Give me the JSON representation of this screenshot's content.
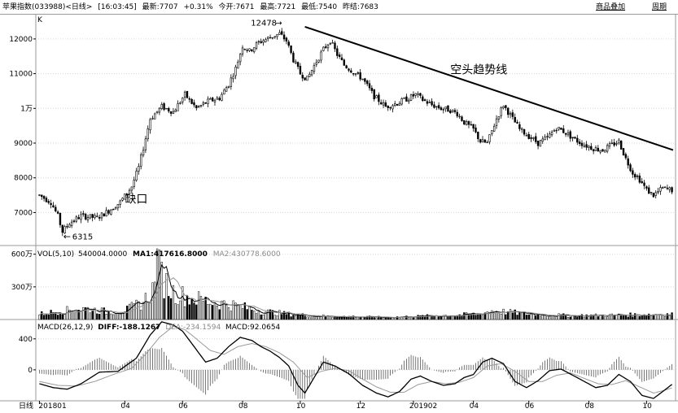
{
  "header": {
    "title": "苹果指数(033988)<日线>",
    "time": "[16:03:45]",
    "latest": "最新:7707",
    "change": "+0.31%",
    "open": "今开:7671",
    "high": "最高:7721",
    "low": "最低:7540",
    "prev_close": "昨结:7683",
    "overlay_label": "商品叠加",
    "period_label": "周期"
  },
  "colors": {
    "grid": "#d6d6d6",
    "line": "#000000",
    "ma2": "#9a9a9a",
    "border": "#9a9a9a"
  },
  "chart_data": [
    {
      "type": "candlestick",
      "panel": "price",
      "corner_label": "K",
      "y_ticks": [
        {
          "v": 12000,
          "label": "12000"
        },
        {
          "v": 11000,
          "label": "11000"
        },
        {
          "v": 10000,
          "label": "1万"
        },
        {
          "v": 9000,
          "label": "9000"
        },
        {
          "v": 8000,
          "label": "8000"
        },
        {
          "v": 7000,
          "label": "7000"
        }
      ],
      "ylim": [
        6050,
        12700
      ],
      "x_ticks": [
        "201801",
        "04",
        "06",
        "08",
        "10",
        "12",
        "201902",
        "04",
        "06",
        "08",
        "10"
      ],
      "close_profile": [
        [
          0,
          7500
        ],
        [
          5,
          7300
        ],
        [
          8,
          6900
        ],
        [
          10,
          6450
        ],
        [
          13,
          6700
        ],
        [
          18,
          6900
        ],
        [
          25,
          6850
        ],
        [
          30,
          7050
        ],
        [
          35,
          7300
        ],
        [
          40,
          7750
        ],
        [
          43,
          8300
        ],
        [
          48,
          9700
        ],
        [
          53,
          10050
        ],
        [
          58,
          9900
        ],
        [
          63,
          10400
        ],
        [
          68,
          10000
        ],
        [
          73,
          10200
        ],
        [
          78,
          10300
        ],
        [
          82,
          10700
        ],
        [
          85,
          11150
        ],
        [
          88,
          11800
        ],
        [
          91,
          11650
        ],
        [
          95,
          11900
        ],
        [
          100,
          12050
        ],
        [
          104,
          12150
        ],
        [
          107,
          11950
        ],
        [
          110,
          11400
        ],
        [
          113,
          11000
        ],
        [
          116,
          10850
        ],
        [
          120,
          11350
        ],
        [
          123,
          11700
        ],
        [
          126,
          11950
        ],
        [
          129,
          11550
        ],
        [
          132,
          11250
        ],
        [
          136,
          11050
        ],
        [
          140,
          10850
        ],
        [
          145,
          10350
        ],
        [
          150,
          10050
        ],
        [
          155,
          10150
        ],
        [
          160,
          10300
        ],
        [
          163,
          10400
        ],
        [
          166,
          10250
        ],
        [
          170,
          10100
        ],
        [
          174,
          10000
        ],
        [
          178,
          9950
        ],
        [
          181,
          9850
        ],
        [
          184,
          9600
        ],
        [
          188,
          9400
        ],
        [
          191,
          9050
        ],
        [
          194,
          9000
        ],
        [
          198,
          9700
        ],
        [
          201,
          10100
        ],
        [
          204,
          9800
        ],
        [
          208,
          9400
        ],
        [
          212,
          9200
        ],
        [
          216,
          9000
        ],
        [
          220,
          9150
        ],
        [
          224,
          9450
        ],
        [
          228,
          9300
        ],
        [
          232,
          9100
        ],
        [
          236,
          8950
        ],
        [
          240,
          8850
        ],
        [
          244,
          8800
        ],
        [
          248,
          8950
        ],
        [
          251,
          9050
        ],
        [
          254,
          8550
        ],
        [
          257,
          8150
        ],
        [
          260,
          7950
        ],
        [
          263,
          7650
        ],
        [
          266,
          7500
        ],
        [
          270,
          7700
        ],
        [
          274,
          7650
        ]
      ],
      "bar_count": 275,
      "annotations": [
        {
          "text": "12478",
          "kind": "high",
          "value": 12478
        },
        {
          "text": "6315",
          "kind": "low",
          "value": 6315
        },
        {
          "text": "空头趋势线"
        },
        {
          "text": "缺口"
        }
      ],
      "trendline": [
        [
          115,
          12350
        ],
        [
          275,
          8800
        ]
      ]
    },
    {
      "type": "bar",
      "panel": "volume",
      "legend": {
        "name": "VOL(5,10)",
        "value": "540004.0000",
        "ma1": "MA1:417616.8000",
        "ma2": "MA2:430778.6000"
      },
      "y_ticks": [
        {
          "v": 6000000,
          "label": "600万"
        },
        {
          "v": 3000000,
          "label": "300万"
        }
      ],
      "ylim": [
        0,
        6800000
      ],
      "profile": [
        [
          0,
          500000
        ],
        [
          10,
          800000
        ],
        [
          20,
          1000000
        ],
        [
          30,
          700000
        ],
        [
          38,
          900000
        ],
        [
          45,
          1600000
        ],
        [
          50,
          3000000
        ],
        [
          52,
          4500000
        ],
        [
          54,
          3500000
        ],
        [
          58,
          2500000
        ],
        [
          65,
          2000000
        ],
        [
          75,
          1600000
        ],
        [
          85,
          1300000
        ],
        [
          95,
          800000
        ],
        [
          110,
          450000
        ],
        [
          125,
          300000
        ],
        [
          150,
          200000
        ],
        [
          180,
          400000
        ],
        [
          190,
          500000
        ],
        [
          196,
          800000
        ],
        [
          202,
          700000
        ],
        [
          212,
          500000
        ],
        [
          230,
          350000
        ],
        [
          250,
          400000
        ],
        [
          274,
          500000
        ]
      ],
      "spike": {
        "x": 51,
        "v": 6500000
      }
    },
    {
      "type": "line",
      "panel": "macd",
      "legend": {
        "name": "MACD(26,12,9)",
        "diff": "DIFF:-188.1267",
        "dea": "DEA:-234.1594",
        "macd": "MACD:92.0654"
      },
      "y_ticks": [
        {
          "v": 400,
          "label": "400"
        },
        {
          "v": 0,
          "label": "0"
        }
      ],
      "ylim": [
        -400,
        650
      ],
      "diff_profile": [
        [
          0,
          -180
        ],
        [
          6,
          -230
        ],
        [
          12,
          -250
        ],
        [
          18,
          -180
        ],
        [
          26,
          -30
        ],
        [
          34,
          -20
        ],
        [
          42,
          150
        ],
        [
          48,
          450
        ],
        [
          53,
          620
        ],
        [
          58,
          580
        ],
        [
          62,
          500
        ],
        [
          67,
          300
        ],
        [
          72,
          100
        ],
        [
          77,
          150
        ],
        [
          82,
          300
        ],
        [
          87,
          420
        ],
        [
          92,
          380
        ],
        [
          96,
          300
        ],
        [
          100,
          240
        ],
        [
          104,
          160
        ],
        [
          108,
          50
        ],
        [
          112,
          -200
        ],
        [
          115,
          -300
        ],
        [
          119,
          -100
        ],
        [
          123,
          100
        ],
        [
          128,
          50
        ],
        [
          134,
          -50
        ],
        [
          140,
          -200
        ],
        [
          146,
          -300
        ],
        [
          151,
          -350
        ],
        [
          156,
          -280
        ],
        [
          161,
          -120
        ],
        [
          165,
          -80
        ],
        [
          170,
          -150
        ],
        [
          175,
          -200
        ],
        [
          180,
          -180
        ],
        [
          184,
          -100
        ],
        [
          188,
          -60
        ],
        [
          192,
          100
        ],
        [
          196,
          150
        ],
        [
          201,
          80
        ],
        [
          206,
          -150
        ],
        [
          211,
          -230
        ],
        [
          216,
          -140
        ],
        [
          221,
          -10
        ],
        [
          226,
          10
        ],
        [
          231,
          -70
        ],
        [
          236,
          -150
        ],
        [
          241,
          -230
        ],
        [
          246,
          -200
        ],
        [
          251,
          -60
        ],
        [
          256,
          -150
        ],
        [
          261,
          -330
        ],
        [
          266,
          -370
        ],
        [
          270,
          -280
        ],
        [
          274,
          -188
        ]
      ],
      "dea_profile": [
        [
          0,
          -150
        ],
        [
          8,
          -200
        ],
        [
          16,
          -210
        ],
        [
          24,
          -150
        ],
        [
          32,
          -60
        ],
        [
          40,
          20
        ],
        [
          46,
          200
        ],
        [
          52,
          420
        ],
        [
          58,
          560
        ],
        [
          63,
          520
        ],
        [
          68,
          400
        ],
        [
          74,
          250
        ],
        [
          80,
          200
        ],
        [
          86,
          300
        ],
        [
          92,
          340
        ],
        [
          98,
          300
        ],
        [
          104,
          220
        ],
        [
          110,
          100
        ],
        [
          116,
          -100
        ],
        [
          122,
          -20
        ],
        [
          128,
          20
        ],
        [
          134,
          -10
        ],
        [
          140,
          -120
        ],
        [
          146,
          -220
        ],
        [
          152,
          -290
        ],
        [
          158,
          -290
        ],
        [
          164,
          -190
        ],
        [
          170,
          -150
        ],
        [
          176,
          -180
        ],
        [
          182,
          -160
        ],
        [
          188,
          -100
        ],
        [
          194,
          50
        ],
        [
          200,
          80
        ],
        [
          206,
          -20
        ],
        [
          212,
          -150
        ],
        [
          218,
          -150
        ],
        [
          224,
          -70
        ],
        [
          230,
          -40
        ],
        [
          236,
          -110
        ],
        [
          242,
          -180
        ],
        [
          248,
          -190
        ],
        [
          254,
          -140
        ],
        [
          260,
          -220
        ],
        [
          266,
          -300
        ],
        [
          270,
          -270
        ],
        [
          274,
          -234
        ]
      ]
    }
  ]
}
